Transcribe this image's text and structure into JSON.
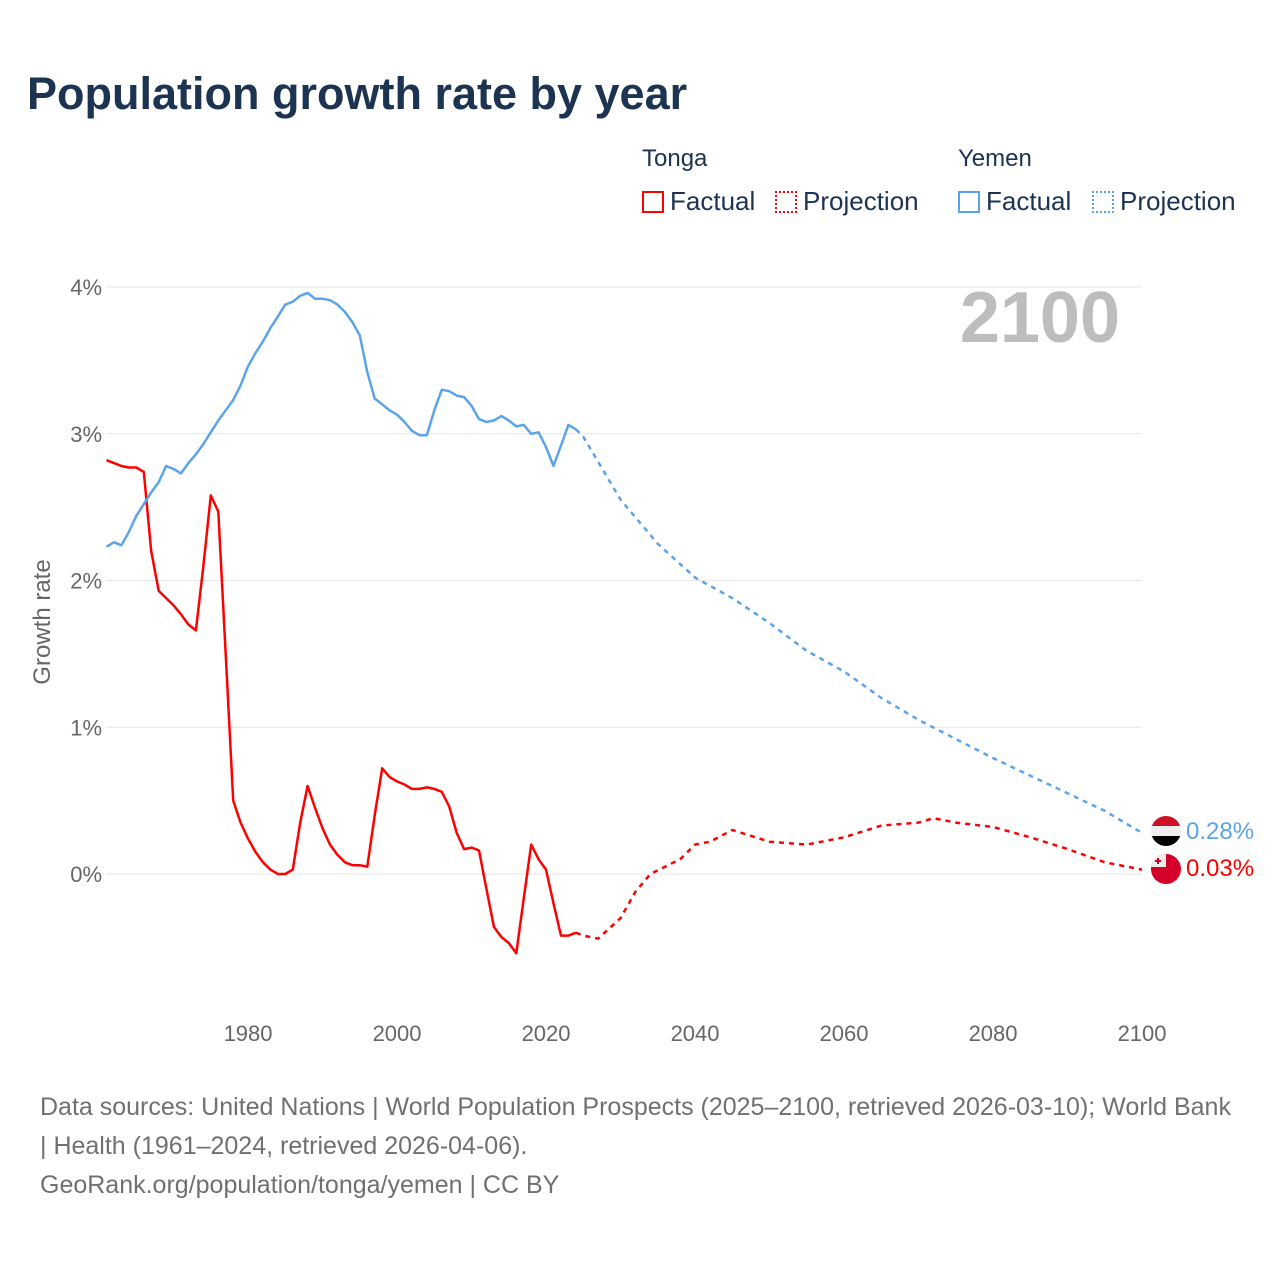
{
  "title": "Population growth rate by year",
  "legend": {
    "groups": [
      {
        "name": "Tonga",
        "color": "#ff0000",
        "factual": "Factual",
        "projection": "Projection"
      },
      {
        "name": "Yemen",
        "color": "#5ba4ea",
        "factual": "Factual",
        "projection": "Projection"
      }
    ]
  },
  "year_display": "2100",
  "end_labels": {
    "yemen": "0.28%",
    "tonga": "0.03%"
  },
  "footer": {
    "line1": "Data sources: United Nations | World Population Prospects (2025–2100, retrieved 2026-03-10); World Bank | Health (1961–2024, retrieved 2026-04-06).",
    "line2": "GeoRank.org/population/tonga/yemen | CC BY"
  },
  "chart_data": {
    "type": "line",
    "title": "Population growth rate by year",
    "xlabel": "",
    "ylabel": "Growth rate",
    "xlim": [
      1961,
      2100
    ],
    "ylim": [
      -0.9,
      4.2
    ],
    "grid": true,
    "legend_position": "top-right",
    "x_ticks": [
      "1980",
      "2000",
      "2020",
      "2040",
      "2060",
      "2080",
      "2100"
    ],
    "y_ticks": [
      "0%",
      "1%",
      "2%",
      "3%",
      "4%"
    ],
    "series": [
      {
        "name": "Tonga Factual",
        "color": "#ff0000",
        "dashed": false,
        "x": [
          1961,
          1962,
          1963,
          1964,
          1965,
          1966,
          1967,
          1968,
          1969,
          1970,
          1971,
          1972,
          1973,
          1974,
          1975,
          1976,
          1977,
          1978,
          1979,
          1980,
          1981,
          1982,
          1983,
          1984,
          1985,
          1986,
          1987,
          1988,
          1989,
          1990,
          1991,
          1992,
          1993,
          1994,
          1995,
          1996,
          1997,
          1998,
          1999,
          2000,
          2001,
          2002,
          2003,
          2004,
          2005,
          2006,
          2007,
          2008,
          2009,
          2010,
          2011,
          2012,
          2013,
          2014,
          2015,
          2016,
          2017,
          2018,
          2019,
          2020,
          2021,
          2022,
          2023,
          2024
        ],
        "y": [
          2.82,
          2.8,
          2.78,
          2.77,
          2.77,
          2.74,
          2.2,
          1.93,
          1.88,
          1.83,
          1.77,
          1.7,
          1.66,
          2.1,
          2.58,
          2.47,
          1.5,
          0.5,
          0.35,
          0.24,
          0.15,
          0.08,
          0.03,
          0.0,
          0.0,
          0.03,
          0.35,
          0.6,
          0.45,
          0.31,
          0.2,
          0.13,
          0.08,
          0.06,
          0.06,
          0.05,
          0.4,
          0.72,
          0.66,
          0.63,
          0.61,
          0.58,
          0.58,
          0.59,
          0.58,
          0.56,
          0.46,
          0.28,
          0.17,
          0.18,
          0.16,
          -0.1,
          -0.36,
          -0.43,
          -0.47,
          -0.54,
          -0.17,
          0.2,
          0.1,
          0.03,
          -0.2,
          -0.42,
          -0.42,
          -0.4
        ]
      },
      {
        "name": "Tonga Projection",
        "color": "#ff0000",
        "dashed": true,
        "x": [
          2024,
          2025,
          2027,
          2030,
          2032,
          2034,
          2038,
          2040,
          2042,
          2045,
          2050,
          2055,
          2060,
          2065,
          2070,
          2072,
          2075,
          2080,
          2085,
          2090,
          2095,
          2100
        ],
        "y": [
          -0.4,
          -0.42,
          -0.44,
          -0.3,
          -0.12,
          0.0,
          0.1,
          0.2,
          0.22,
          0.3,
          0.22,
          0.2,
          0.25,
          0.33,
          0.35,
          0.38,
          0.35,
          0.32,
          0.25,
          0.17,
          0.08,
          0.03
        ]
      },
      {
        "name": "Yemen Factual",
        "color": "#5ba4ea",
        "dashed": false,
        "x": [
          1961,
          1962,
          1963,
          1964,
          1965,
          1966,
          1967,
          1968,
          1969,
          1970,
          1971,
          1972,
          1973,
          1974,
          1975,
          1976,
          1977,
          1978,
          1979,
          1980,
          1981,
          1982,
          1983,
          1984,
          1985,
          1986,
          1987,
          1988,
          1989,
          1990,
          1991,
          1992,
          1993,
          1994,
          1995,
          1996,
          1997,
          1998,
          1999,
          2000,
          2001,
          2002,
          2003,
          2004,
          2005,
          2006,
          2007,
          2008,
          2009,
          2010,
          2011,
          2012,
          2013,
          2014,
          2015,
          2016,
          2017,
          2018,
          2019,
          2020,
          2021,
          2022,
          2023,
          2024
        ],
        "y": [
          2.23,
          2.26,
          2.24,
          2.33,
          2.44,
          2.52,
          2.6,
          2.67,
          2.78,
          2.76,
          2.73,
          2.8,
          2.86,
          2.93,
          3.01,
          3.09,
          3.16,
          3.23,
          3.33,
          3.46,
          3.55,
          3.63,
          3.72,
          3.8,
          3.88,
          3.9,
          3.94,
          3.96,
          3.92,
          3.92,
          3.91,
          3.88,
          3.83,
          3.76,
          3.67,
          3.42,
          3.24,
          3.2,
          3.16,
          3.13,
          3.08,
          3.02,
          2.99,
          2.99,
          3.16,
          3.3,
          3.29,
          3.26,
          3.25,
          3.19,
          3.1,
          3.08,
          3.09,
          3.12,
          3.09,
          3.05,
          3.06,
          3.0,
          3.01,
          2.91,
          2.78,
          2.92,
          3.06,
          3.03
        ]
      },
      {
        "name": "Yemen Projection",
        "color": "#5ba4ea",
        "dashed": true,
        "x": [
          2024,
          2025,
          2030,
          2035,
          2040,
          2045,
          2050,
          2055,
          2060,
          2065,
          2070,
          2075,
          2080,
          2085,
          2090,
          2095,
          2100
        ],
        "y": [
          3.03,
          2.98,
          2.55,
          2.25,
          2.02,
          1.88,
          1.71,
          1.52,
          1.38,
          1.2,
          1.05,
          0.92,
          0.79,
          0.67,
          0.55,
          0.43,
          0.28
        ]
      }
    ]
  }
}
